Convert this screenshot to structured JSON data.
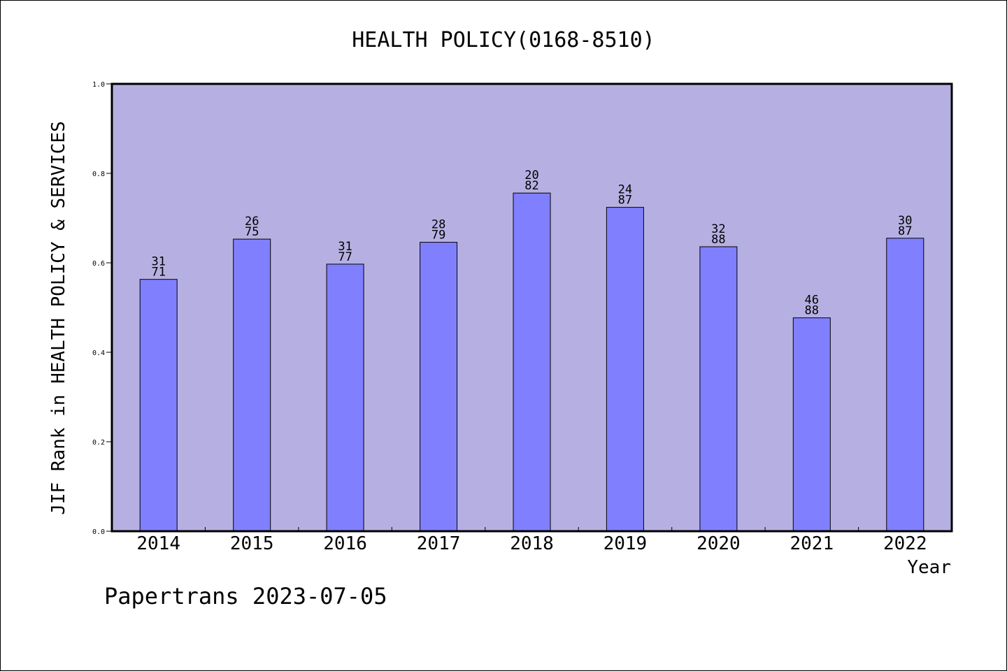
{
  "chart_data": {
    "type": "bar",
    "title": "HEALTH POLICY(0168-8510)",
    "xlabel": "Year",
    "ylabel": "JIF Rank in HEALTH POLICY & SERVICES",
    "ylim": [
      0,
      1.0
    ],
    "yticks": [
      "0.0",
      "0.2",
      "0.4",
      "0.6",
      "0.8",
      "1.0"
    ],
    "grid": false,
    "categories": [
      "2014",
      "2015",
      "2016",
      "2017",
      "2018",
      "2019",
      "2020",
      "2021",
      "2022"
    ],
    "values": [
      0.563,
      0.653,
      0.597,
      0.646,
      0.756,
      0.724,
      0.636,
      0.477,
      0.655
    ],
    "bar_labels": [
      {
        "rank": "31",
        "total": "71"
      },
      {
        "rank": "26",
        "total": "75"
      },
      {
        "rank": "31",
        "total": "77"
      },
      {
        "rank": "28",
        "total": "79"
      },
      {
        "rank": "20",
        "total": "82"
      },
      {
        "rank": "24",
        "total": "87"
      },
      {
        "rank": "32",
        "total": "88"
      },
      {
        "rank": "46",
        "total": "88"
      },
      {
        "rank": "30",
        "total": "87"
      }
    ],
    "colors": {
      "plot_background": "#b6b0e2",
      "bar_fill": "#8080ff",
      "bar_stroke": "#000000"
    }
  },
  "footer": {
    "caption": "Papertrans 2023-07-05"
  }
}
